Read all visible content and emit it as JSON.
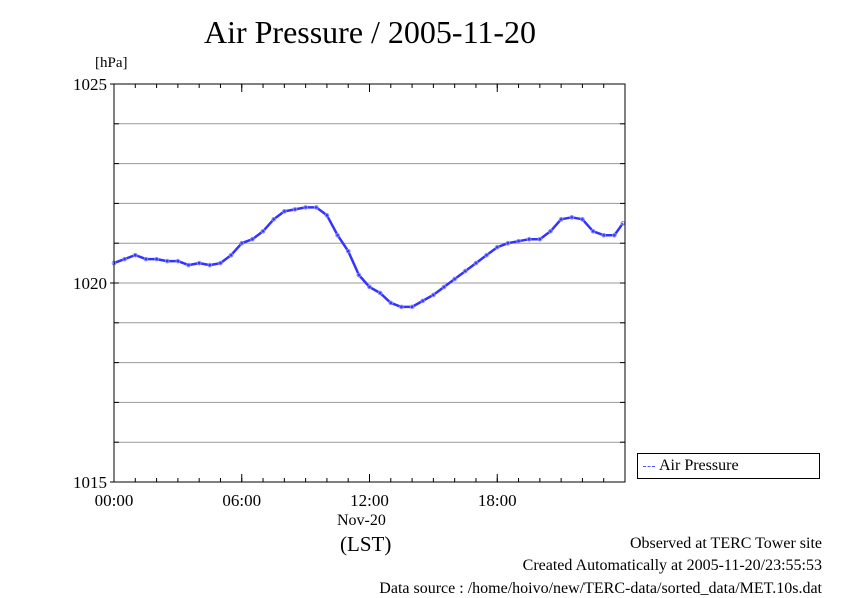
{
  "chart_data": {
    "type": "line",
    "title": "Air Pressure / 2005-11-20",
    "ylabel": "[hPa]",
    "ylim": [
      1015,
      1025
    ],
    "y_ticks": [
      "1015",
      "1020",
      "1025"
    ],
    "y_minor_step": 1,
    "xlim": [
      0,
      24
    ],
    "x_ticks": [
      {
        "value": 0,
        "label": "00:00"
      },
      {
        "value": 6,
        "label": "06:00"
      },
      {
        "value": 12,
        "label": "12:00"
      },
      {
        "value": 18,
        "label": "18:00"
      }
    ],
    "x_date_label": "Nov-20",
    "x_zone_label": "(LST)",
    "grid": true,
    "legend_position": "right-bottom",
    "series": [
      {
        "name": "Air Pressure",
        "color": "#3333ff",
        "x": [
          0,
          0.5,
          1,
          1.5,
          2,
          2.5,
          3,
          3.5,
          4,
          4.5,
          5,
          5.5,
          6,
          6.5,
          7,
          7.5,
          8,
          8.5,
          9,
          9.5,
          10,
          10.5,
          11,
          11.5,
          12,
          12.5,
          13,
          13.5,
          14,
          14.5,
          15,
          15.5,
          16,
          16.5,
          17,
          17.5,
          18,
          18.5,
          19,
          19.5,
          20,
          20.5,
          21,
          21.5,
          22,
          22.5,
          23,
          23.5,
          23.9
        ],
        "values": [
          1020.5,
          1020.6,
          1020.7,
          1020.6,
          1020.6,
          1020.55,
          1020.55,
          1020.45,
          1020.5,
          1020.45,
          1020.5,
          1020.7,
          1021.0,
          1021.1,
          1021.3,
          1021.6,
          1021.8,
          1021.85,
          1021.9,
          1021.9,
          1021.7,
          1021.2,
          1020.8,
          1020.2,
          1019.9,
          1019.75,
          1019.5,
          1019.4,
          1019.4,
          1019.55,
          1019.7,
          1019.9,
          1020.1,
          1020.3,
          1020.5,
          1020.7,
          1020.9,
          1021.0,
          1021.05,
          1021.1,
          1021.1,
          1021.3,
          1021.6,
          1021.65,
          1021.6,
          1021.3,
          1021.2,
          1021.2,
          1021.5
        ]
      }
    ]
  },
  "legend": {
    "label": "Air Pressure"
  },
  "footer": {
    "observed": "Observed at TERC Tower site",
    "created": "Created Automatically at 2005-11-20/23:55:53",
    "source": "Data source : /home/hoivo/new/TERC-data/sorted_data/MET.10s.dat"
  }
}
